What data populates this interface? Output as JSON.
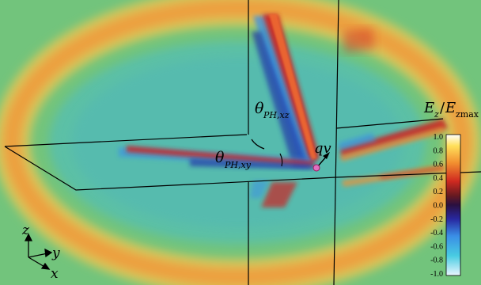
{
  "figure": {
    "field_label_E": "E",
    "field_label_sub_z": "z",
    "field_label_sep": "/",
    "field_label_E2": "E",
    "field_label_sub_zmax": "zmax",
    "charge_velocity_label": "qv",
    "theta_xz_symbol": "θ",
    "theta_xz_subscript": "PH,xz",
    "theta_xy_symbol": "θ",
    "theta_xy_subscript": "PH,xy",
    "axis_z": "z",
    "axis_y": "y",
    "axis_x": "x"
  },
  "colorbar": {
    "ticks": [
      "1.0",
      "0.8",
      "0.6",
      "0.4",
      "0.2",
      "0.0",
      "-0.2",
      "-0.4",
      "-0.6",
      "-0.8",
      "-1.0"
    ],
    "min": -1.0,
    "max": 1.0,
    "colors": [
      "#ffffff",
      "#ffd84a",
      "#f08a28",
      "#cc2020",
      "#5a1818",
      "#2a1040",
      "#2a2aa0",
      "#3a8ee6",
      "#46c8e0",
      "#e8f4ff"
    ]
  },
  "colors": {
    "background": "#72c47c",
    "inner_field": "#5cc0a6",
    "ring_orange": "#eca040",
    "ring_yellow": "#d8cc5c",
    "red": "#cc2020",
    "blue": "#2840b8"
  }
}
